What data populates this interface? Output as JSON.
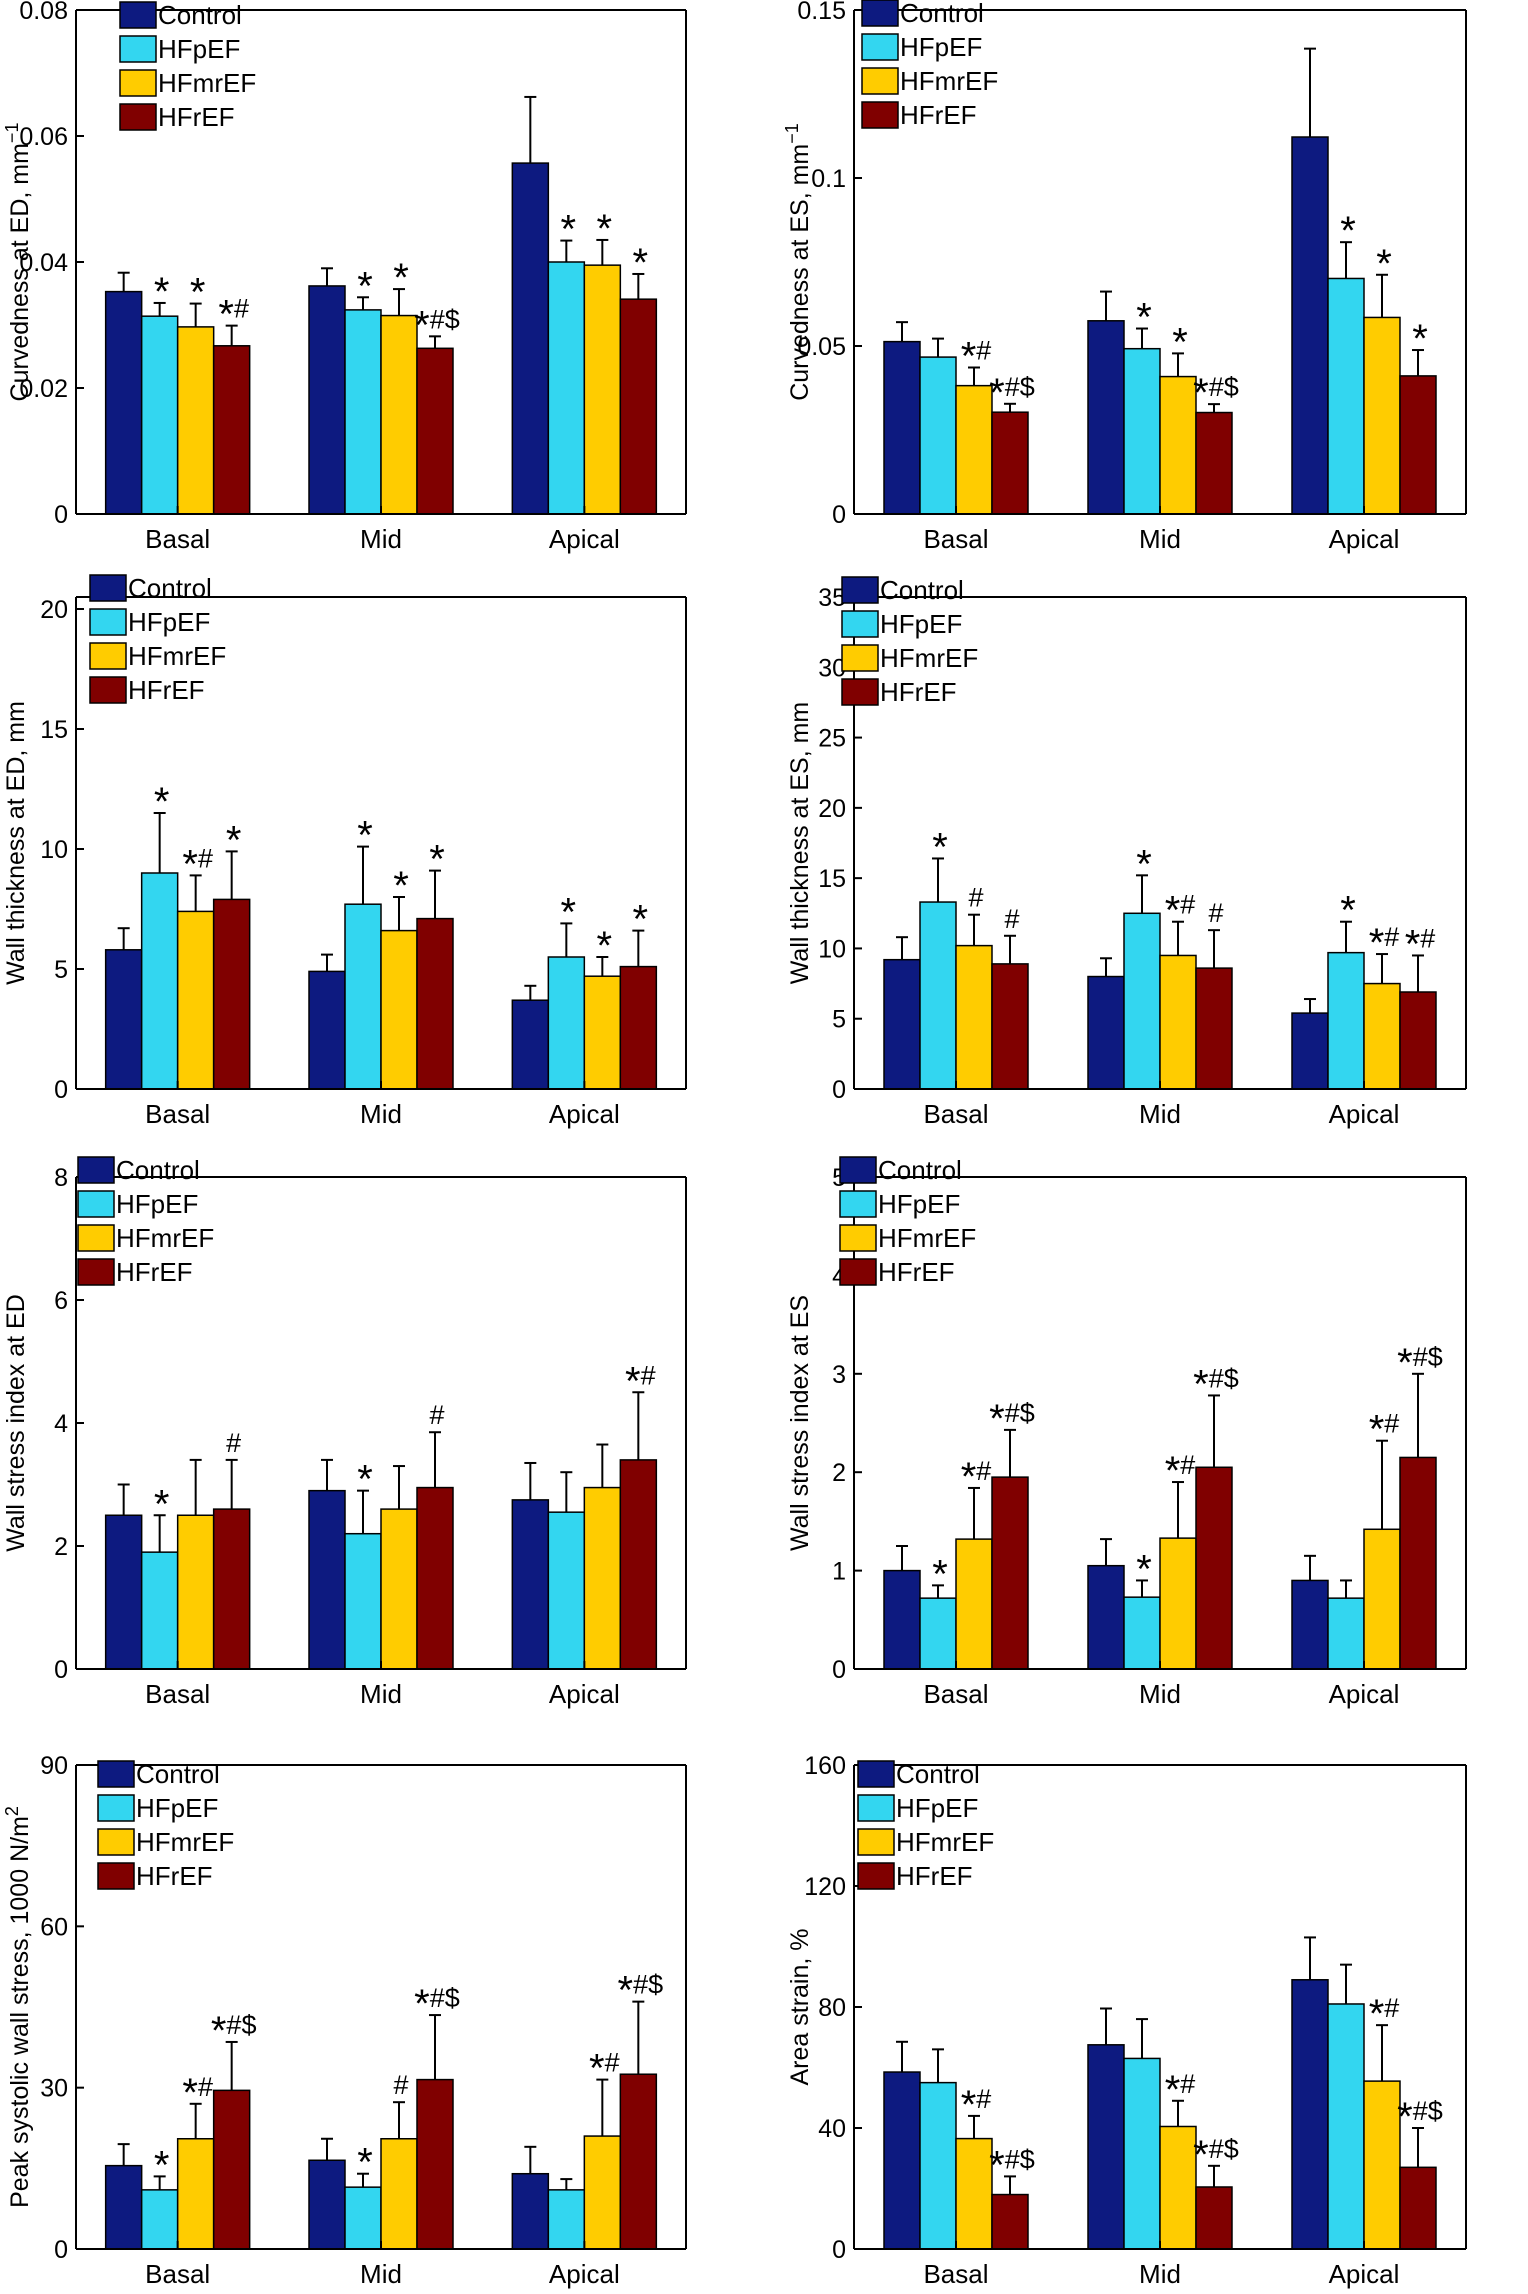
{
  "colors": {
    "Control": "#0d1a80",
    "HFpEF": "#33d6f0",
    "HFmrEF": "#ffcc00",
    "HFrEF": "#800000"
  },
  "chart_data": [
    {
      "type": "bar",
      "title": "",
      "ylabel": "Curvedness at ED, mm",
      "ylabel_sup": "−1",
      "ylim": [
        0,
        0.08
      ],
      "yticks": [
        {
          "v": 0,
          "label": "0"
        },
        {
          "v": 0.02,
          "label": "0.02"
        },
        {
          "v": 0.04,
          "label": "0.04"
        },
        {
          "v": 0.06,
          "label": "0.06"
        },
        {
          "v": 0.08,
          "label": "0.08"
        }
      ],
      "categories": [
        "Basal",
        "Mid",
        "Apical"
      ],
      "series": [
        {
          "name": "Control",
          "values": [
            0.0353,
            0.0362,
            0.0557
          ],
          "errors": [
            0.003,
            0.0028,
            0.0105
          ]
        },
        {
          "name": "HFpEF",
          "values": [
            0.0314,
            0.0324,
            0.04
          ],
          "errors": [
            0.0021,
            0.002,
            0.0034
          ]
        },
        {
          "name": "HFmrEF",
          "values": [
            0.0297,
            0.0315,
            0.0395
          ],
          "errors": [
            0.0037,
            0.0042,
            0.004
          ]
        },
        {
          "name": "HFrEF",
          "values": [
            0.0267,
            0.0263,
            0.0341
          ],
          "errors": [
            0.0032,
            0.0019,
            0.004
          ]
        }
      ],
      "significance": [
        [
          "",
          "*",
          "*",
          "*#"
        ],
        [
          "",
          "*",
          "*",
          "*#$"
        ],
        [
          "",
          "*",
          "*",
          "*"
        ]
      ]
    },
    {
      "type": "bar",
      "title": "",
      "ylabel": "Curvedness at ES, mm",
      "ylabel_sup": "−1",
      "ylim": [
        0,
        0.15
      ],
      "yticks": [
        {
          "v": 0,
          "label": "0"
        },
        {
          "v": 0.05,
          "label": "0.05"
        },
        {
          "v": 0.1,
          "label": "0.1"
        },
        {
          "v": 0.15,
          "label": "0.15"
        }
      ],
      "categories": [
        "Basal",
        "Mid",
        "Apical"
      ],
      "series": [
        {
          "name": "Control",
          "values": [
            0.0513,
            0.0575,
            0.1122
          ],
          "errors": [
            0.0058,
            0.0087,
            0.0263
          ]
        },
        {
          "name": "HFpEF",
          "values": [
            0.0467,
            0.0492,
            0.0701
          ],
          "errors": [
            0.0055,
            0.006,
            0.0108
          ]
        },
        {
          "name": "HFmrEF",
          "values": [
            0.0382,
            0.0409,
            0.0585
          ],
          "errors": [
            0.0054,
            0.0069,
            0.0127
          ]
        },
        {
          "name": "HFrEF",
          "values": [
            0.0303,
            0.0302,
            0.0411
          ],
          "errors": [
            0.0025,
            0.0025,
            0.0077
          ]
        }
      ],
      "significance": [
        [
          "",
          "",
          "*#",
          "*#$"
        ],
        [
          "",
          "*",
          "*",
          "*#$"
        ],
        [
          "",
          "*",
          "*",
          "*"
        ]
      ]
    },
    {
      "type": "bar",
      "title": "",
      "ylabel": "Wall thickness at ED, mm",
      "ylim": [
        0,
        20.5
      ],
      "yticks": [
        {
          "v": 0,
          "label": "0"
        },
        {
          "v": 5,
          "label": "5"
        },
        {
          "v": 10,
          "label": "10"
        },
        {
          "v": 15,
          "label": "15"
        },
        {
          "v": 20,
          "label": "20"
        }
      ],
      "categories": [
        "Basal",
        "Mid",
        "Apical"
      ],
      "series": [
        {
          "name": "Control",
          "values": [
            5.8,
            4.9,
            3.7
          ],
          "errors": [
            0.9,
            0.7,
            0.6
          ]
        },
        {
          "name": "HFpEF",
          "values": [
            9.0,
            7.7,
            5.5
          ],
          "errors": [
            2.5,
            2.4,
            1.4
          ]
        },
        {
          "name": "HFmrEF",
          "values": [
            7.4,
            6.6,
            4.7
          ],
          "errors": [
            1.5,
            1.4,
            0.8
          ]
        },
        {
          "name": "HFrEF",
          "values": [
            7.9,
            7.1,
            5.1
          ],
          "errors": [
            2.0,
            2.0,
            1.5
          ]
        }
      ],
      "significance": [
        [
          "",
          "*",
          "*#",
          "*"
        ],
        [
          "",
          "*",
          "*",
          "*"
        ],
        [
          "",
          "*",
          "*",
          "*"
        ]
      ]
    },
    {
      "type": "bar",
      "title": "",
      "ylabel": "Wall thickness at ES, mm",
      "ylim": [
        0,
        35
      ],
      "yticks": [
        {
          "v": 0,
          "label": "0"
        },
        {
          "v": 5,
          "label": "5"
        },
        {
          "v": 10,
          "label": "10"
        },
        {
          "v": 15,
          "label": "15"
        },
        {
          "v": 20,
          "label": "20"
        },
        {
          "v": 25,
          "label": "25"
        },
        {
          "v": 30,
          "label": "30"
        },
        {
          "v": 35,
          "label": "35"
        }
      ],
      "categories": [
        "Basal",
        "Mid",
        "Apical"
      ],
      "series": [
        {
          "name": "Control",
          "values": [
            9.2,
            8.0,
            5.4
          ],
          "errors": [
            1.6,
            1.3,
            1.0
          ]
        },
        {
          "name": "HFpEF",
          "values": [
            13.3,
            12.5,
            9.7
          ],
          "errors": [
            3.1,
            2.7,
            2.2
          ]
        },
        {
          "name": "HFmrEF",
          "values": [
            10.2,
            9.5,
            7.5
          ],
          "errors": [
            2.2,
            2.4,
            2.1
          ]
        },
        {
          "name": "HFrEF",
          "values": [
            8.9,
            8.6,
            6.9
          ],
          "errors": [
            2.0,
            2.7,
            2.6
          ]
        }
      ],
      "significance": [
        [
          "",
          "*",
          "#",
          "#"
        ],
        [
          "",
          "*",
          "*#",
          "#"
        ],
        [
          "",
          "*",
          "*#",
          "*#"
        ]
      ]
    },
    {
      "type": "bar",
      "title": "",
      "ylabel": "Wall stress index at ED",
      "ylim": [
        0,
        8
      ],
      "yticks": [
        {
          "v": 0,
          "label": "0"
        },
        {
          "v": 2,
          "label": "2"
        },
        {
          "v": 4,
          "label": "4"
        },
        {
          "v": 6,
          "label": "6"
        },
        {
          "v": 8,
          "label": "8"
        }
      ],
      "categories": [
        "Basal",
        "Mid",
        "Apical"
      ],
      "series": [
        {
          "name": "Control",
          "values": [
            2.5,
            2.9,
            2.75
          ],
          "errors": [
            0.5,
            0.5,
            0.6
          ]
        },
        {
          "name": "HFpEF",
          "values": [
            1.9,
            2.2,
            2.55
          ],
          "errors": [
            0.6,
            0.7,
            0.65
          ]
        },
        {
          "name": "HFmrEF",
          "values": [
            2.5,
            2.6,
            2.95
          ],
          "errors": [
            0.9,
            0.7,
            0.7
          ]
        },
        {
          "name": "HFrEF",
          "values": [
            2.6,
            2.95,
            3.4
          ],
          "errors": [
            0.8,
            0.9,
            1.1
          ]
        }
      ],
      "significance": [
        [
          "",
          "*",
          "",
          "#"
        ],
        [
          "",
          "*",
          "",
          "#"
        ],
        [
          "",
          "",
          "",
          "*#"
        ]
      ]
    },
    {
      "type": "bar",
      "title": "",
      "ylabel": "Wall stress index at ES",
      "ylim": [
        0,
        5
      ],
      "yticks": [
        {
          "v": 0,
          "label": "0"
        },
        {
          "v": 1,
          "label": "1"
        },
        {
          "v": 2,
          "label": "2"
        },
        {
          "v": 3,
          "label": "3"
        },
        {
          "v": 4,
          "label": "4"
        },
        {
          "v": 5,
          "label": "5"
        }
      ],
      "categories": [
        "Basal",
        "Mid",
        "Apical"
      ],
      "series": [
        {
          "name": "Control",
          "values": [
            1.0,
            1.05,
            0.9
          ],
          "errors": [
            0.25,
            0.27,
            0.25
          ]
        },
        {
          "name": "HFpEF",
          "values": [
            0.72,
            0.73,
            0.72
          ],
          "errors": [
            0.13,
            0.17,
            0.18
          ]
        },
        {
          "name": "HFmrEF",
          "values": [
            1.32,
            1.33,
            1.42
          ],
          "errors": [
            0.52,
            0.57,
            0.9
          ]
        },
        {
          "name": "HFrEF",
          "values": [
            1.95,
            2.05,
            2.15
          ],
          "errors": [
            0.48,
            0.73,
            0.85
          ]
        }
      ],
      "significance": [
        [
          "",
          "*",
          "*#",
          "*#$"
        ],
        [
          "",
          "*",
          "*#",
          "*#$"
        ],
        [
          "",
          "",
          "*#",
          "*#$"
        ]
      ]
    },
    {
      "type": "bar",
      "title": "",
      "ylabel": "Peak systolic wall stress, 1000 N/m",
      "ylabel_sup": "2",
      "ylim": [
        0,
        90
      ],
      "yticks": [
        {
          "v": 0,
          "label": "0"
        },
        {
          "v": 30,
          "label": "30"
        },
        {
          "v": 60,
          "label": "60"
        },
        {
          "v": 90,
          "label": "90"
        }
      ],
      "categories": [
        "Basal",
        "Mid",
        "Apical"
      ],
      "series": [
        {
          "name": "Control",
          "values": [
            15.5,
            16.5,
            14.0
          ],
          "errors": [
            4.0,
            4.0,
            5.0
          ]
        },
        {
          "name": "HFpEF",
          "values": [
            11.0,
            11.5,
            11.0
          ],
          "errors": [
            2.5,
            2.5,
            2.0
          ]
        },
        {
          "name": "HFmrEF",
          "values": [
            20.5,
            20.5,
            21.0
          ],
          "errors": [
            6.5,
            6.8,
            10.5
          ]
        },
        {
          "name": "HFrEF",
          "values": [
            29.5,
            31.5,
            32.5
          ],
          "errors": [
            9.0,
            12.0,
            13.5
          ]
        }
      ],
      "significance": [
        [
          "",
          "*",
          "*#",
          "*#$"
        ],
        [
          "",
          "*",
          "#",
          "*#$"
        ],
        [
          "",
          "",
          "*#",
          "*#$"
        ]
      ]
    },
    {
      "type": "bar",
      "title": "",
      "ylabel": "Area strain, %",
      "ylim": [
        0,
        160
      ],
      "yticks": [
        {
          "v": 0,
          "label": "0"
        },
        {
          "v": 40,
          "label": "40"
        },
        {
          "v": 80,
          "label": "80"
        },
        {
          "v": 120,
          "label": "120"
        },
        {
          "v": 160,
          "label": "160"
        }
      ],
      "categories": [
        "Basal",
        "Mid",
        "Apical"
      ],
      "series": [
        {
          "name": "Control",
          "values": [
            58.5,
            67.5,
            89.0
          ],
          "errors": [
            10.0,
            12.0,
            14.0
          ]
        },
        {
          "name": "HFpEF",
          "values": [
            55.0,
            63.0,
            81.0
          ],
          "errors": [
            11.0,
            13.0,
            13.0
          ]
        },
        {
          "name": "HFmrEF",
          "values": [
            36.5,
            40.5,
            55.5
          ],
          "errors": [
            7.5,
            8.5,
            18.5
          ]
        },
        {
          "name": "HFrEF",
          "values": [
            18.0,
            20.5,
            27.0
          ],
          "errors": [
            6.0,
            7.0,
            13.0
          ]
        }
      ],
      "significance": [
        [
          "",
          "",
          "*#",
          "*#$"
        ],
        [
          "",
          "",
          "*#",
          "*#$"
        ],
        [
          "",
          "",
          "*#",
          "*#$"
        ]
      ]
    }
  ]
}
